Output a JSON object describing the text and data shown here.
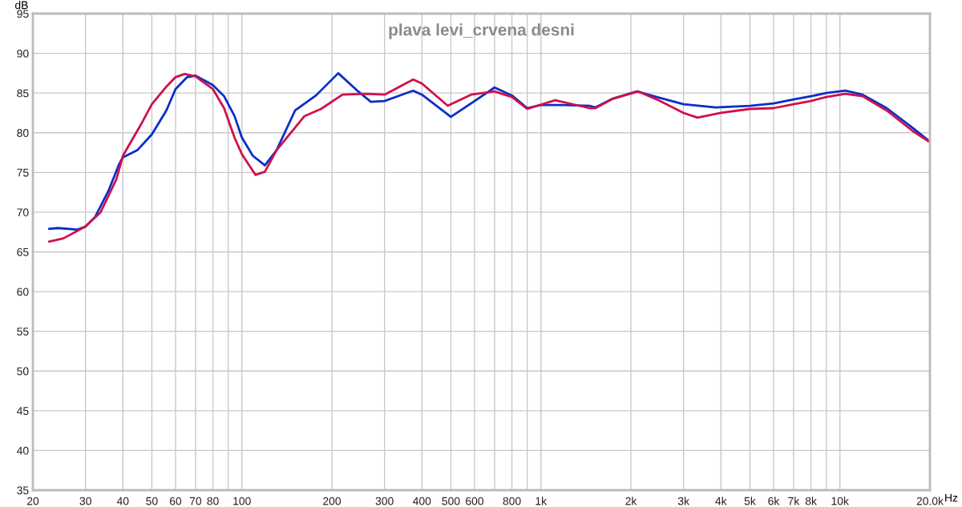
{
  "chart_data": {
    "type": "line",
    "title": "plava levi_crvena desni",
    "xlabel": "Hz",
    "ylabel": "dB",
    "log": "x",
    "grid": true,
    "legend": false,
    "marker": "none",
    "line_style": "solid",
    "xlim": [
      20,
      20000
    ],
    "ylim": [
      35,
      95
    ],
    "xticks": [
      20,
      30,
      40,
      50,
      60,
      70,
      80,
      {
        "value": 90,
        "label": null
      },
      100,
      200,
      300,
      400,
      500,
      600,
      {
        "value": 700,
        "label": null
      },
      800,
      {
        "value": 900,
        "label": null
      },
      {
        "value": 1000,
        "label": "1k"
      },
      {
        "value": 2000,
        "label": "2k"
      },
      {
        "value": 3000,
        "label": "3k"
      },
      {
        "value": 4000,
        "label": "4k"
      },
      {
        "value": 5000,
        "label": "5k"
      },
      {
        "value": 6000,
        "label": "6k"
      },
      {
        "value": 7000,
        "label": "7k"
      },
      {
        "value": 8000,
        "label": "8k"
      },
      {
        "value": 9000,
        "label": null
      },
      {
        "value": 10000,
        "label": "10k"
      },
      {
        "value": 20000,
        "label": "20.0k"
      }
    ],
    "yticks": [
      35,
      40,
      45,
      50,
      55,
      60,
      65,
      70,
      75,
      80,
      85,
      90,
      95
    ],
    "series": [
      {
        "color": "#0a2ec8",
        "x": [
          22.7,
          24.3,
          28.1,
          30,
          32.3,
          35.8,
          38.8,
          40,
          44.7,
          50,
          55.9,
          60,
          65.6,
          70,
          80,
          87.2,
          94.5,
          100,
          108.8,
          119.4,
          130.6,
          150.6,
          177,
          210,
          245,
          270,
          300,
          374,
          400,
          500,
          584,
          700,
          800,
          900,
          1000,
          1184,
          1454,
          1522,
          1742,
          2096,
          2440,
          3000,
          3840,
          5000,
          6000,
          7000,
          8000,
          9000,
          10420,
          11900,
          14340,
          17540,
          20000
        ],
        "values": [
          67.9,
          68.0,
          67.8,
          68.2,
          69.4,
          72.7,
          76.0,
          76.9,
          77.8,
          79.8,
          82.8,
          85.5,
          87.0,
          87.2,
          86.0,
          84.6,
          82.1,
          79.4,
          77.1,
          75.9,
          77.8,
          82.8,
          84.7,
          87.5,
          85.2,
          83.9,
          84.0,
          85.3,
          84.8,
          82.0,
          83.7,
          85.7,
          84.7,
          83.1,
          83.5,
          83.5,
          83.4,
          83.2,
          84.3,
          85.2,
          84.5,
          83.6,
          83.2,
          83.4,
          83.7,
          84.2,
          84.6,
          85.0,
          85.3,
          84.8,
          83.1,
          80.6,
          78.9
        ]
      },
      {
        "color": "#d0104a",
        "x": [
          22.7,
          25.3,
          30,
          33.7,
          38,
          40,
          45.6,
          50,
          55.9,
          60,
          64.3,
          70,
          80,
          87.2,
          94.5,
          100,
          111,
          119.4,
          130.6,
          162,
          184,
          217,
          260,
          300,
          374,
          400,
          488,
          584,
          700,
          800,
          900,
          1116,
          1454,
          1522,
          1742,
          2116,
          2440,
          3000,
          3340,
          4000,
          5000,
          6000,
          7000,
          8000,
          9000,
          10420,
          11900,
          14340,
          17540,
          20000
        ],
        "values": [
          66.3,
          66.7,
          68.2,
          70.0,
          74.1,
          77.1,
          80.8,
          83.6,
          85.8,
          87.0,
          87.4,
          87.1,
          85.5,
          83.1,
          79.4,
          77.3,
          74.7,
          75.1,
          77.8,
          82.1,
          83.0,
          84.8,
          84.9,
          84.8,
          86.7,
          86.2,
          83.4,
          84.8,
          85.2,
          84.5,
          83.0,
          84.1,
          83.1,
          83.1,
          84.3,
          85.2,
          84.2,
          82.5,
          81.9,
          82.5,
          83.0,
          83.1,
          83.6,
          84.0,
          84.5,
          84.9,
          84.6,
          82.8,
          80.2,
          78.8
        ]
      }
    ]
  }
}
